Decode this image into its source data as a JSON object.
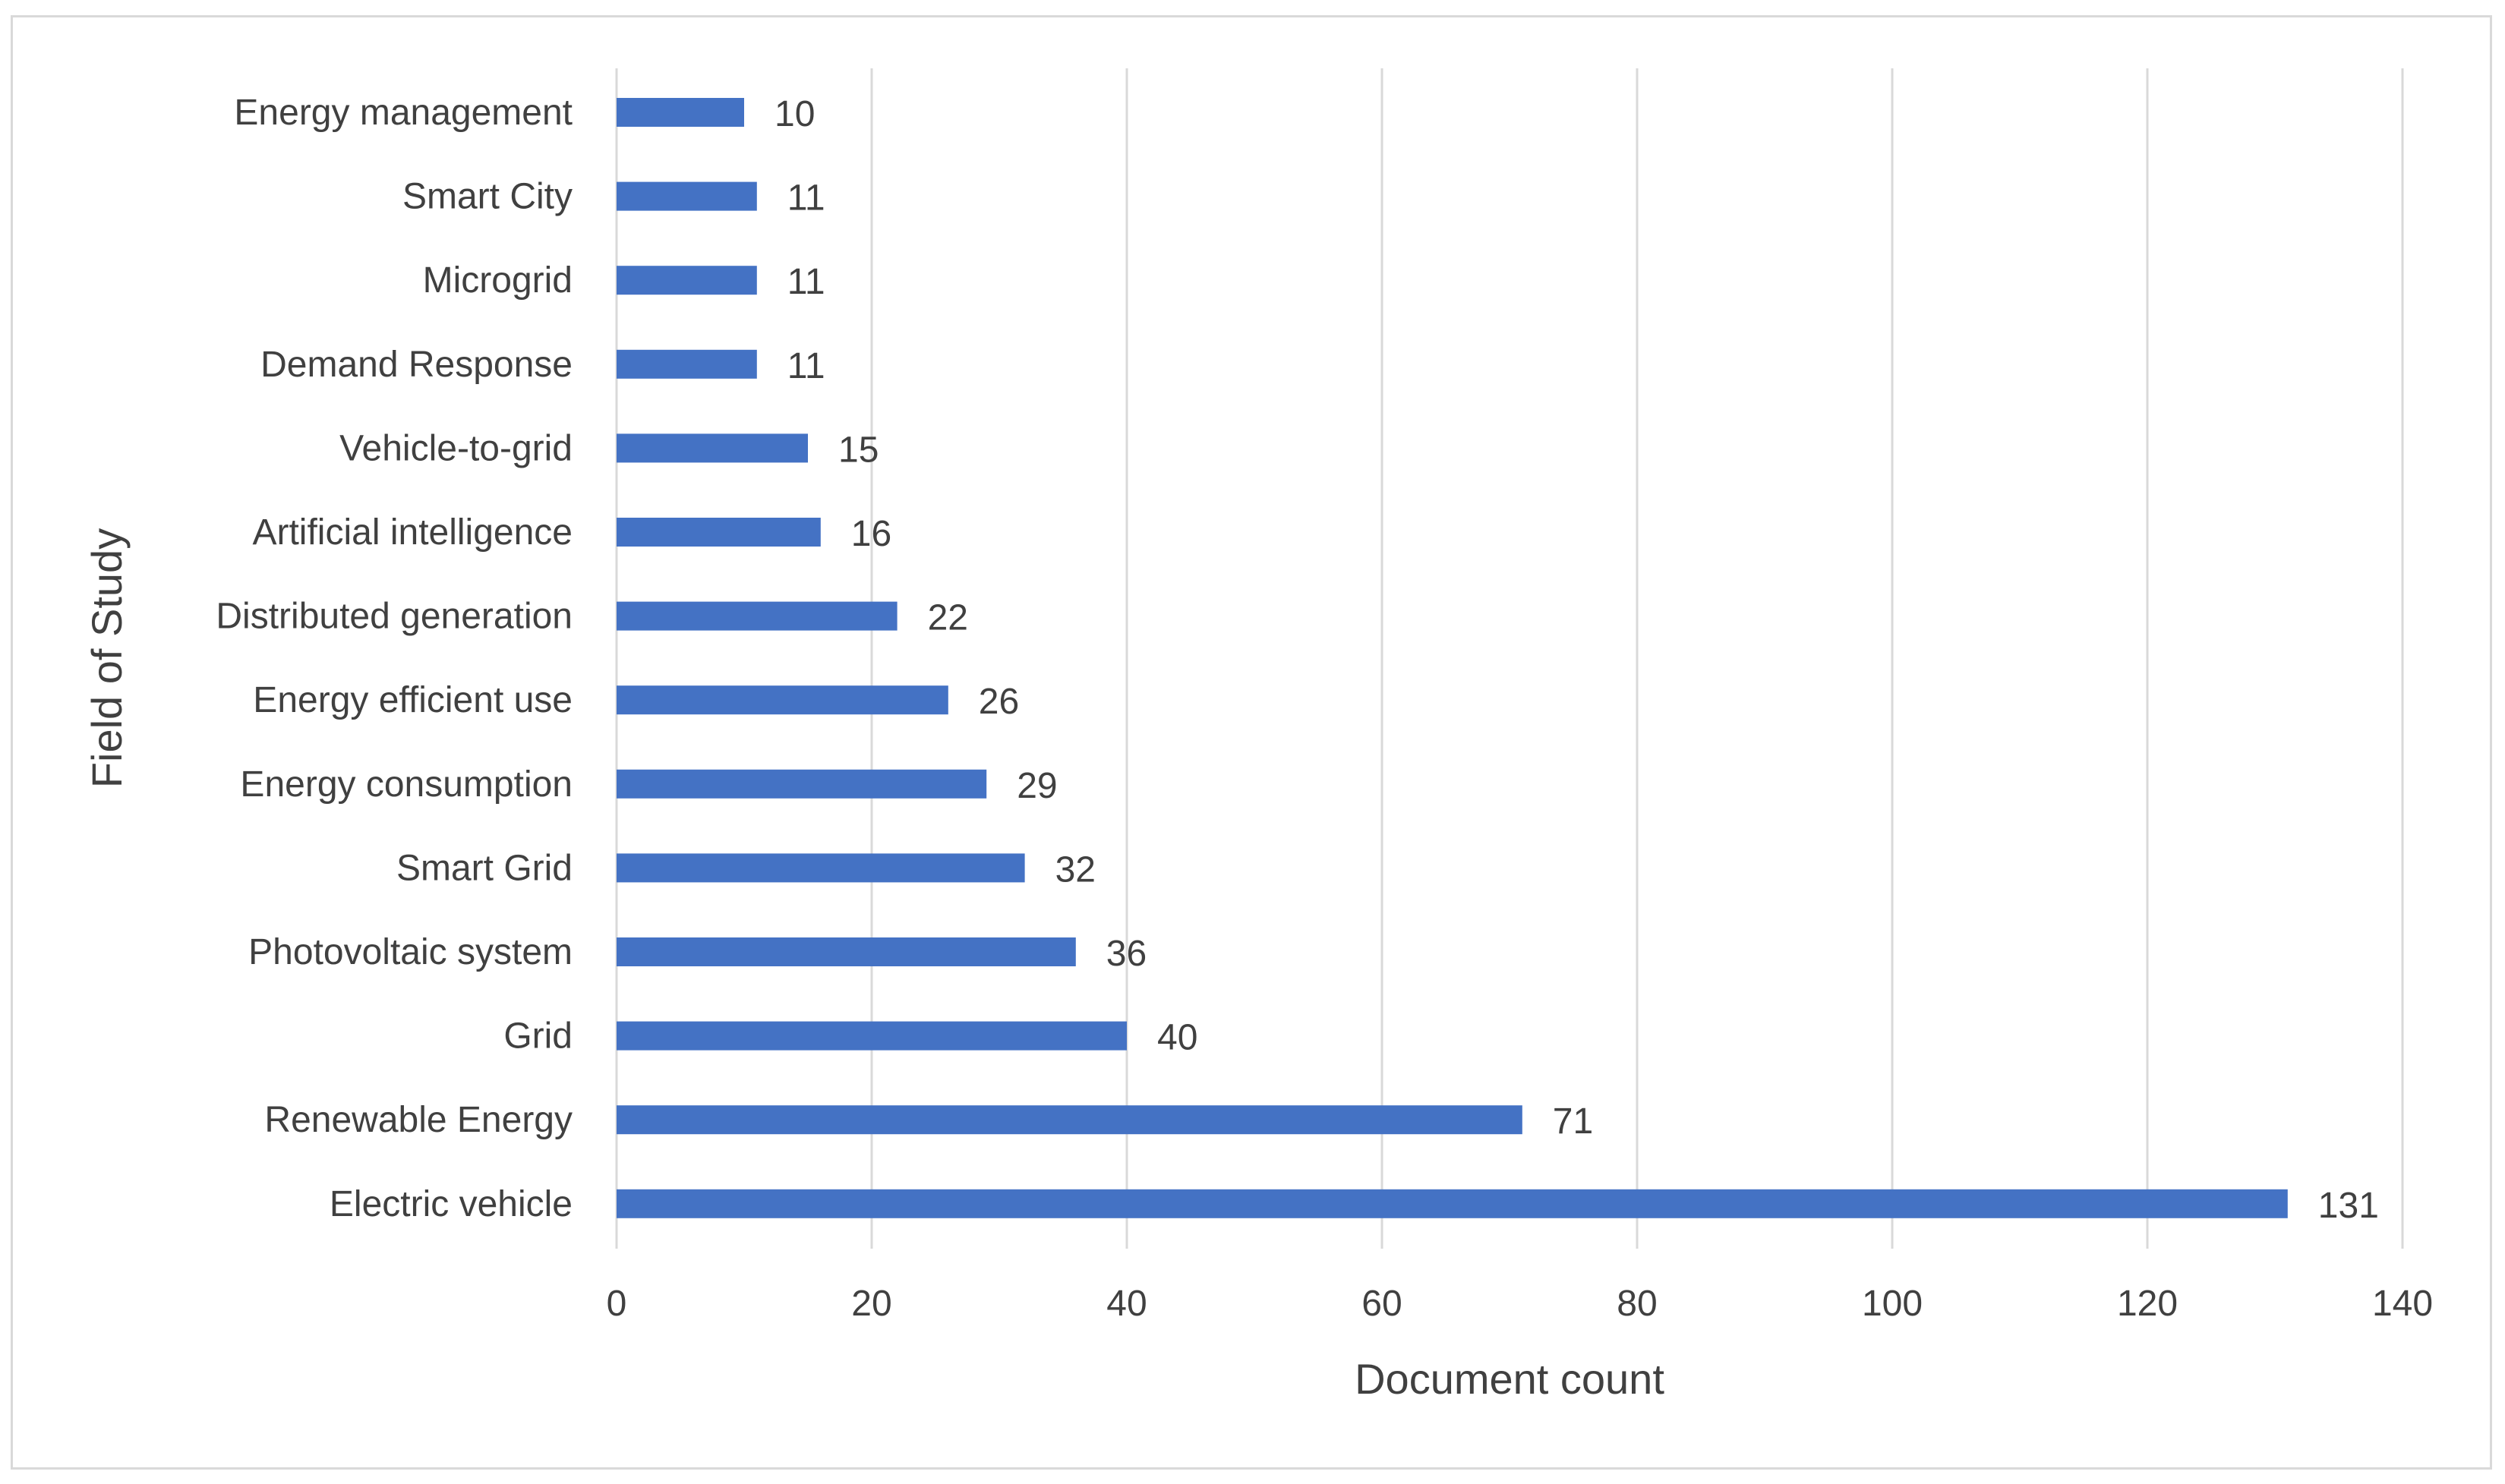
{
  "chart_data": {
    "type": "bar",
    "orientation": "horizontal",
    "xlabel": "Document count",
    "ylabel": "Field of Study",
    "xlim": [
      0,
      140
    ],
    "xticks": [
      "0",
      "20",
      "40",
      "60",
      "80",
      "100",
      "120",
      "140"
    ],
    "grid": "vertical",
    "legend": "none",
    "bar_color": "#4472C4",
    "categories": [
      "Energy management",
      "Smart City",
      "Microgrid",
      "Demand Response",
      "Vehicle-to-grid",
      "Artificial intelligence",
      "Distributed generation",
      "Energy efficient use",
      "Energy consumption",
      "Smart Grid",
      "Photovoltaic system",
      "Grid",
      "Renewable Energy",
      "Electric vehicle"
    ],
    "values": [
      10,
      11,
      11,
      11,
      15,
      16,
      22,
      26,
      29,
      32,
      36,
      40,
      71,
      131
    ]
  }
}
